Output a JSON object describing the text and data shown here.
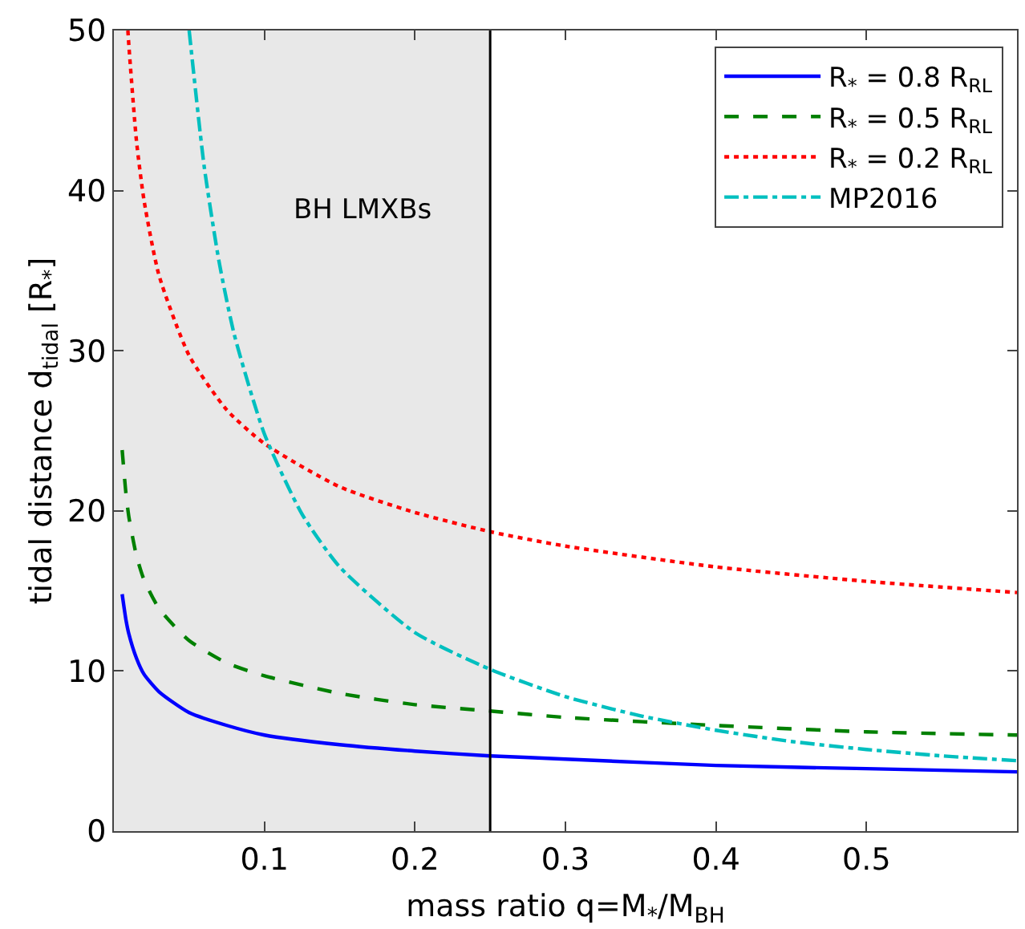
{
  "chart_data": {
    "type": "line",
    "xlabel": "mass ratio q=M$_{*}$/M$_{BH}$",
    "ylabel": "tidal distance d$_{tidal}$ [R$_{*}$]",
    "xlim": [
      0,
      0.6
    ],
    "ylim": [
      0,
      50
    ],
    "xticks": [
      0.1,
      0.2,
      0.3,
      0.4,
      0.5
    ],
    "yticks": [
      0,
      10,
      20,
      30,
      40,
      50
    ],
    "grid": false,
    "legend": "top right",
    "marker": "none",
    "series": [
      {
        "name": "R$_{*}$ = 0.8 R$_{RL}$",
        "color": "#0000ff",
        "line_style": "solid",
        "x": [
          0.0055,
          0.008,
          0.01,
          0.015,
          0.02,
          0.03,
          0.05,
          0.075,
          0.1,
          0.15,
          0.2,
          0.25,
          0.3,
          0.4,
          0.5,
          0.6
        ],
        "values": [
          14.8,
          13.2,
          12.3,
          10.8,
          9.8,
          8.7,
          7.4,
          6.6,
          6.0,
          5.4,
          5.0,
          4.7,
          4.5,
          4.1,
          3.9,
          3.7
        ]
      },
      {
        "name": "R$_{*}$ = 0.5 R$_{RL}$",
        "color": "#008000",
        "line_style": "dashed",
        "x": [
          0.0055,
          0.008,
          0.01,
          0.015,
          0.02,
          0.03,
          0.05,
          0.075,
          0.1,
          0.15,
          0.2,
          0.25,
          0.3,
          0.4,
          0.5,
          0.6
        ],
        "values": [
          23.8,
          21.1,
          19.6,
          17.2,
          15.7,
          13.9,
          11.9,
          10.5,
          9.7,
          8.6,
          7.9,
          7.5,
          7.1,
          6.6,
          6.2,
          6.0
        ]
      },
      {
        "name": "R$_{*}$ = 0.2 R$_{RL}$",
        "color": "#ff0000",
        "line_style": "dotted",
        "x": [
          0.0093,
          0.01,
          0.015,
          0.02,
          0.03,
          0.05,
          0.075,
          0.1,
          0.15,
          0.2,
          0.25,
          0.3,
          0.4,
          0.5,
          0.6
        ],
        "values": [
          50,
          49.0,
          43.1,
          39.4,
          34.7,
          29.7,
          26.3,
          24.2,
          21.5,
          19.9,
          18.7,
          17.8,
          16.5,
          15.6,
          14.9
        ]
      },
      {
        "name": "MP2016",
        "color": "#00bfbf",
        "line_style": "dashdot",
        "x": [
          0.05,
          0.06,
          0.07,
          0.08,
          0.1,
          0.125,
          0.15,
          0.2,
          0.25,
          0.3,
          0.35,
          0.4,
          0.45,
          0.5,
          0.55,
          0.6
        ],
        "values": [
          50,
          41.5,
          35.5,
          31,
          24.8,
          19.8,
          16.5,
          12.4,
          10.1,
          8.4,
          7.2,
          6.3,
          5.6,
          5.1,
          4.7,
          4.4
        ]
      }
    ],
    "bands": [
      {
        "axis": "x",
        "from": 0,
        "to": 0.25,
        "color": "#e8e8e8",
        "label": "BH LMXBs"
      }
    ],
    "ref_lines": [
      {
        "axis": "x",
        "value": 0.25,
        "color": "#000000"
      }
    ]
  }
}
